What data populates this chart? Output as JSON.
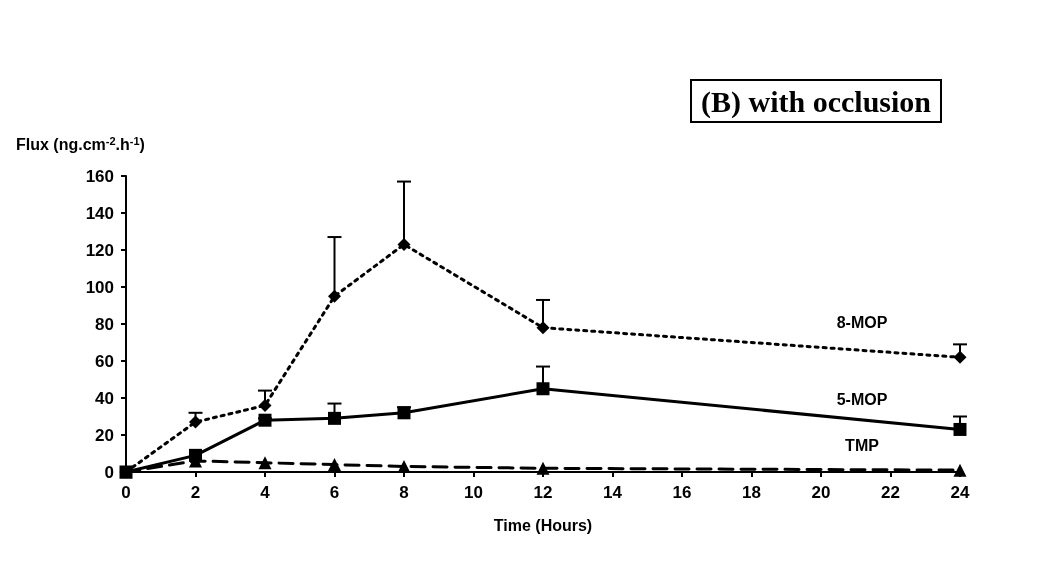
{
  "chart_data": {
    "type": "line",
    "title": "(B) with occlusion",
    "xlabel": "Time (Hours)",
    "ylabel": "Flux (ng.cm$^{-2}$.h$^{-1}$)",
    "x": [
      0,
      2,
      4,
      6,
      8,
      12,
      24
    ],
    "xlim": [
      0,
      24
    ],
    "xticks": [
      0,
      2,
      4,
      6,
      8,
      10,
      12,
      14,
      16,
      18,
      20,
      22,
      24
    ],
    "ylim": [
      0,
      160
    ],
    "yticks": [
      0,
      20,
      40,
      60,
      80,
      100,
      120,
      140,
      160
    ],
    "grid": false,
    "legend": false,
    "series": [
      {
        "name": "8-MOP",
        "color": "#000000",
        "marker": "diamond",
        "line_style": "dotted",
        "values": [
          0,
          27,
          36,
          95,
          123,
          78,
          62
        ],
        "errors": [
          null,
          [
            27,
            32
          ],
          [
            36,
            44
          ],
          [
            95,
            127
          ],
          [
            123,
            157
          ],
          [
            78,
            93
          ],
          [
            62,
            69
          ]
        ]
      },
      {
        "name": "5-MOP",
        "color": "#000000",
        "marker": "square",
        "line_style": "solid",
        "values": [
          0,
          9,
          28,
          29,
          32,
          45,
          23
        ],
        "errors": [
          null,
          null,
          [
            28,
            29
          ],
          [
            29,
            37
          ],
          [
            32,
            35
          ],
          [
            45,
            57
          ],
          [
            23,
            30
          ]
        ]
      },
      {
        "name": "TMP",
        "color": "#000000",
        "marker": "triangle",
        "line_style": "dashed",
        "values": [
          0,
          6,
          5,
          4,
          3,
          2,
          1
        ],
        "errors": [
          null,
          null,
          null,
          null,
          null,
          null,
          null
        ]
      }
    ]
  }
}
